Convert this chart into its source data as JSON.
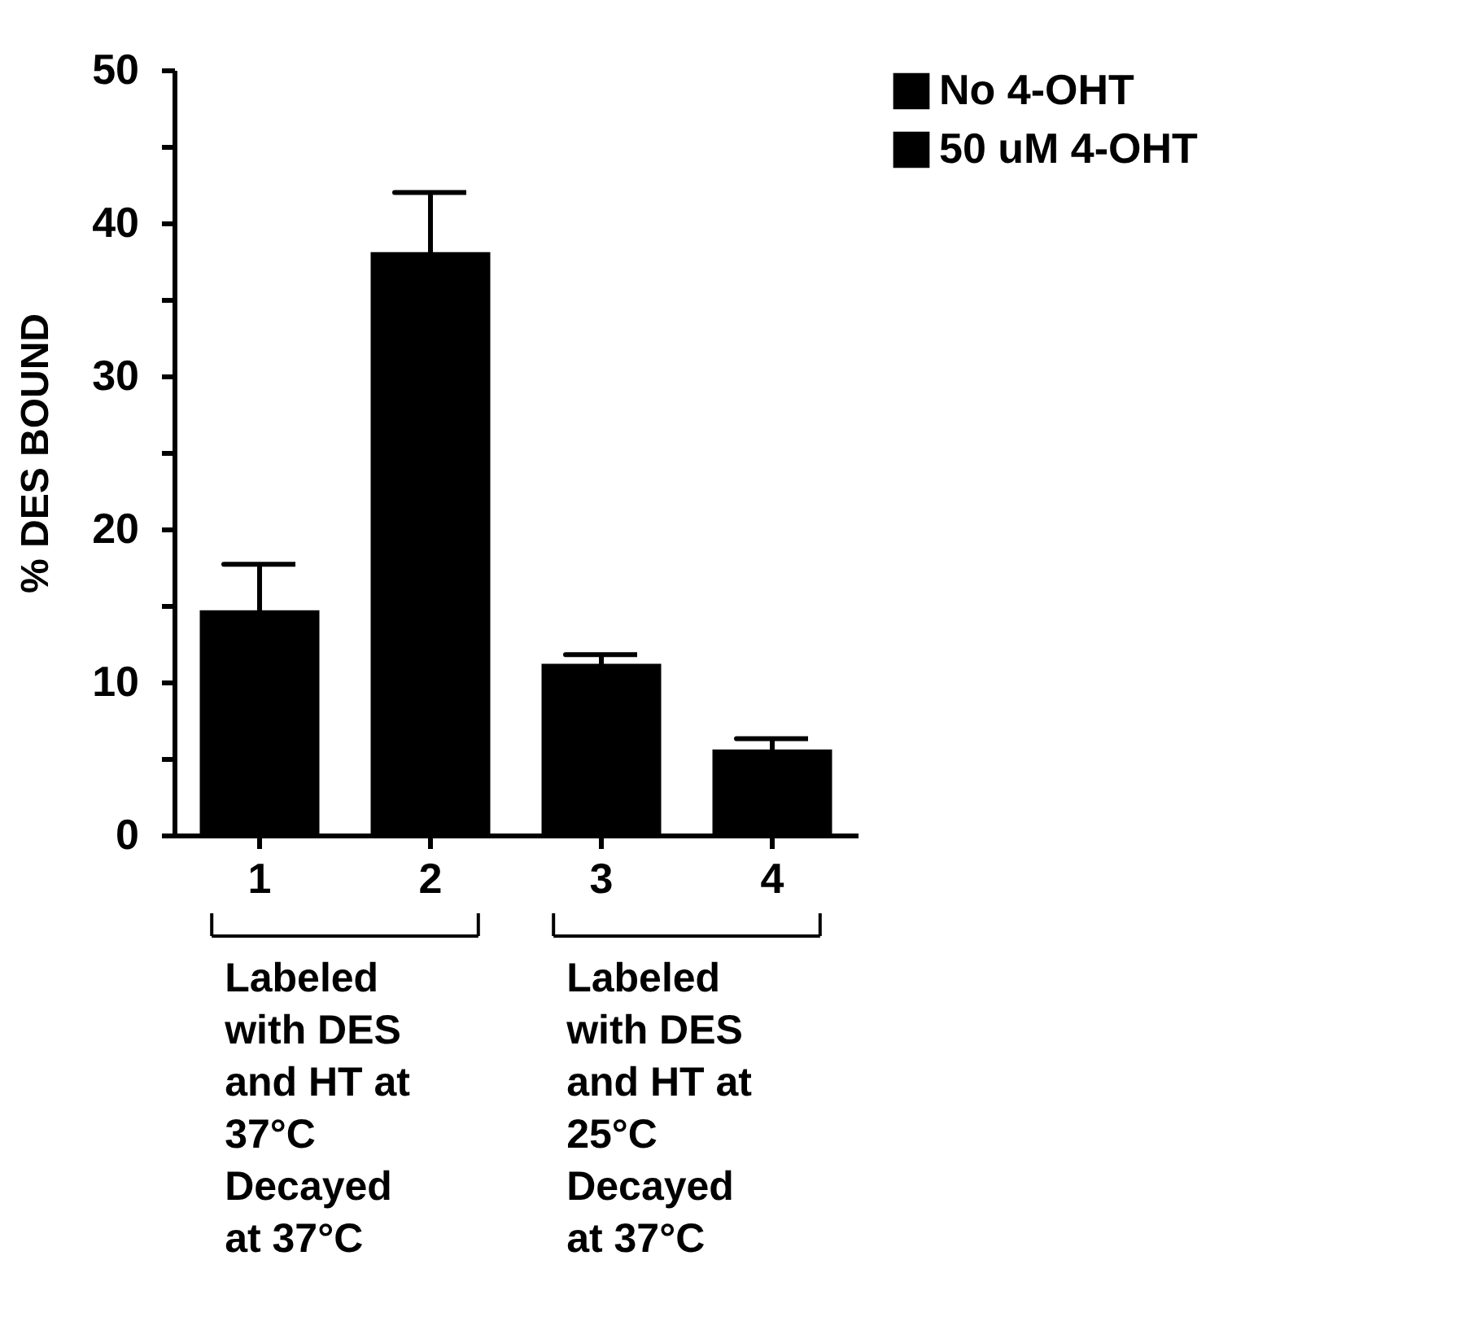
{
  "chart_data": {
    "type": "bar",
    "ylabel": "% DES BOUND",
    "categories": [
      "1",
      "2",
      "3",
      "4"
    ],
    "series": [
      {
        "name": "No 4-OHT",
        "color": "#000000",
        "values": [
          14.7,
          null,
          11.2,
          null
        ],
        "errors": [
          3.0,
          null,
          0.6,
          null
        ]
      },
      {
        "name": "50 uM 4-OHT",
        "color": "#000000",
        "values": [
          null,
          38.1,
          null,
          5.6
        ],
        "errors": [
          null,
          3.9,
          null,
          0.7
        ]
      }
    ],
    "ylim": [
      0,
      50
    ],
    "yticks": [
      0,
      {
        "value": 5,
        "label": null
      },
      10,
      {
        "value": 15,
        "label": null
      },
      20,
      {
        "value": 25,
        "label": null
      },
      30,
      {
        "value": 35,
        "label": null
      },
      40,
      {
        "value": 45,
        "label": null
      },
      50
    ],
    "annotations": [
      "Labeled\nwith DES\nand HT at\n37°C\nDecayed\nat 37°C",
      "Labeled\nwith DES\nand HT at\n25°C\nDecayed\nat 37°C"
    ],
    "grid": false,
    "legend": "right"
  }
}
